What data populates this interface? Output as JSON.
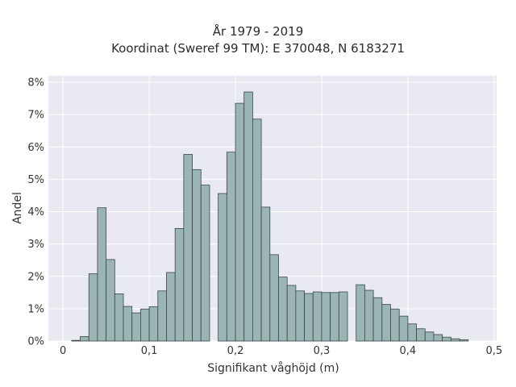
{
  "chart_data": {
    "type": "bar",
    "title": "År 1979 - 2019",
    "subtitle": "Koordinat (Sweref 99 TM): E 370048, N 6183271",
    "xlabel": "Signifikant våghöjd (m)",
    "ylabel": "Andel",
    "xlim": [
      -0.017,
      0.503
    ],
    "ylim": [
      0,
      8.2
    ],
    "grid": true,
    "x_ticks": [
      0,
      0.1,
      0.2,
      0.3,
      0.4,
      0.5
    ],
    "x_tick_labels": [
      "0",
      "0,1",
      "0,2",
      "0,3",
      "0,4",
      "0,5"
    ],
    "y_ticks": [
      0,
      1,
      2,
      3,
      4,
      5,
      6,
      7,
      8
    ],
    "y_tick_labels": [
      "0%",
      "1%",
      "2%",
      "3%",
      "4%",
      "5%",
      "6%",
      "7%",
      "8%"
    ],
    "bin_width": 0.01,
    "bin_starts": [
      0.01,
      0.02,
      0.03,
      0.04,
      0.05,
      0.06,
      0.07,
      0.08,
      0.09,
      0.1,
      0.11,
      0.12,
      0.13,
      0.14,
      0.15,
      0.16,
      0.17,
      0.18,
      0.19,
      0.2,
      0.21,
      0.22,
      0.23,
      0.24,
      0.25,
      0.26,
      0.27,
      0.28,
      0.29,
      0.3,
      0.31,
      0.32,
      0.33,
      0.34,
      0.35,
      0.36,
      0.37,
      0.38,
      0.39,
      0.4,
      0.41,
      0.42,
      0.43,
      0.44,
      0.45,
      0.46
    ],
    "values": [
      0.02,
      0.14,
      2.08,
      4.12,
      2.52,
      1.46,
      1.07,
      0.87,
      0.99,
      1.06,
      1.55,
      2.12,
      3.48,
      5.77,
      5.3,
      4.82,
      0.0,
      4.56,
      5.84,
      7.35,
      7.7,
      6.86,
      4.14,
      2.67,
      1.98,
      1.72,
      1.55,
      1.47,
      1.52,
      1.5,
      1.5,
      1.52,
      0.0,
      1.74,
      1.57,
      1.34,
      1.13,
      0.99,
      0.77,
      0.53,
      0.38,
      0.28,
      0.2,
      0.12,
      0.07,
      0.04
    ]
  },
  "colors": {
    "plot_bg": "#e9e9f2",
    "grid": "#ffffff",
    "bar_fill": "#9bb5b5",
    "bar_edge": "#3a4646"
  }
}
